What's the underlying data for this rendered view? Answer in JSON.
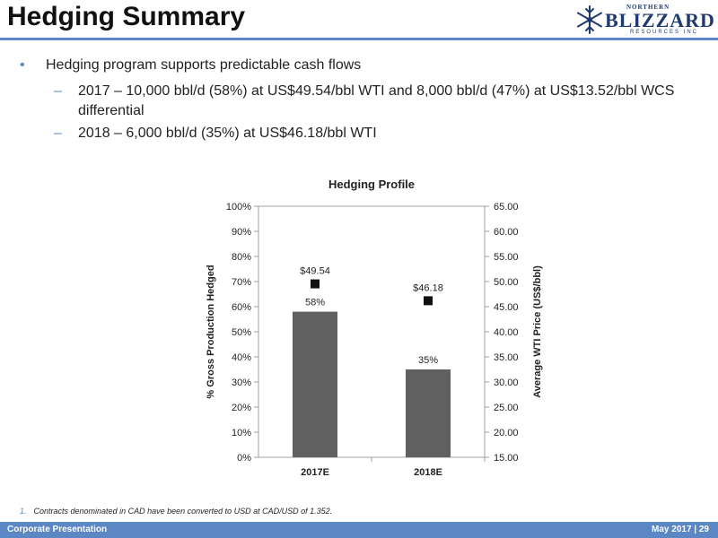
{
  "header": {
    "title": "Hedging Summary",
    "logo": {
      "northern": "NORTHERN",
      "main": "BLIZZARD",
      "sub": "RESOURCES INC",
      "icon": "snowflake-icon"
    }
  },
  "bullets": {
    "main": "Hedging program supports predictable cash flows",
    "sub": [
      {
        "marker": "–",
        "text": "2017 – 10,000 bbl/d (58%) at US$49.54/bbl WTI and 8,000 bbl/d (47%) at US$13.52/bbl WCS differential"
      },
      {
        "marker": "–",
        "text": "2018 – 6,000 bbl/d (35%) at US$46.18/bbl WTI"
      }
    ]
  },
  "chart_data": {
    "type": "bar",
    "title": "Hedging Profile",
    "categories": [
      "2017E",
      "2018E"
    ],
    "series": [
      {
        "type": "bar",
        "axis": "left",
        "values": [
          58,
          35
        ],
        "labels": [
          "58%",
          "35%"
        ],
        "color": "#606060"
      },
      {
        "type": "scatter",
        "axis": "right",
        "values": [
          49.54,
          46.18
        ],
        "labels": [
          "$49.54",
          "$46.18"
        ],
        "color": "#111111",
        "marker": "square"
      }
    ],
    "ylabel": "% Gross Production Hedged",
    "ylim": [
      0,
      100
    ],
    "yticks": [
      "0%",
      "10%",
      "20%",
      "30%",
      "40%",
      "50%",
      "60%",
      "70%",
      "80%",
      "90%",
      "100%"
    ],
    "y2label": "Average WTI Price (US$/bbl)",
    "y2lim": [
      15,
      65
    ],
    "y2ticks": [
      "15.00",
      "20.00",
      "25.00",
      "30.00",
      "35.00",
      "40.00",
      "45.00",
      "50.00",
      "55.00",
      "60.00",
      "65.00"
    ],
    "grid": false,
    "legend": "none"
  },
  "footnote": {
    "number": "1.",
    "text": "Contracts denominated in CAD have been converted to USD at CAD/USD of 1.352."
  },
  "footer": {
    "left": "Corporate Presentation",
    "right": "May 2017 | 29"
  },
  "colors": {
    "accent": "#5b87c5",
    "bar": "#606060",
    "logo": "#1f3b6e"
  }
}
